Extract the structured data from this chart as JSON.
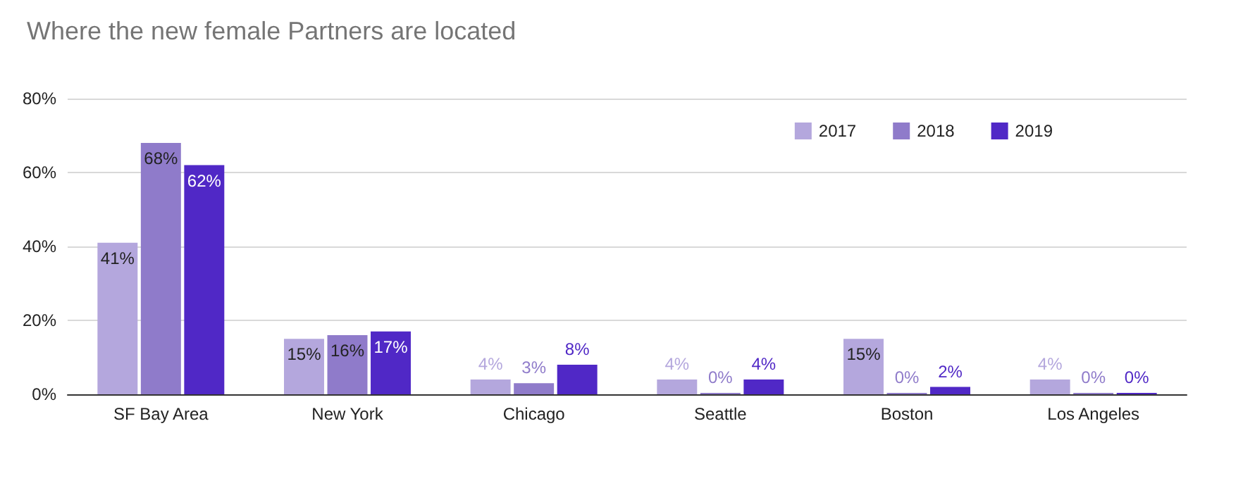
{
  "chart_data": {
    "type": "bar",
    "title": "Where the new female Partners are located",
    "categories": [
      "SF Bay Area",
      "New York",
      "Chicago",
      "Seattle",
      "Boston",
      "Los Angeles"
    ],
    "series": [
      {
        "name": "2017",
        "color": "#b4a7dd",
        "values": [
          41,
          15,
          4,
          4,
          15,
          4
        ],
        "value_labels": [
          "41%",
          "15%",
          "4%",
          "4%",
          "15%",
          "4%"
        ]
      },
      {
        "name": "2018",
        "color": "#8f7bca",
        "values": [
          68,
          16,
          3,
          0,
          0,
          0
        ],
        "value_labels": [
          "68%",
          "16%",
          "3%",
          "0%",
          "0%",
          "0%"
        ]
      },
      {
        "name": "2019",
        "color": "#5028c6",
        "values": [
          62,
          17,
          8,
          4,
          2,
          0
        ],
        "value_labels": [
          "62%",
          "17%",
          "8%",
          "4%",
          "2%",
          "0%"
        ]
      }
    ],
    "ylim": [
      0,
      80
    ],
    "yticks": [
      {
        "value": 0,
        "label": "0%"
      },
      {
        "value": 20,
        "label": "20%"
      },
      {
        "value": 40,
        "label": "40%"
      },
      {
        "value": 60,
        "label": "60%"
      },
      {
        "value": 80,
        "label": "80%"
      }
    ],
    "grid": "y",
    "legend": "top right"
  }
}
